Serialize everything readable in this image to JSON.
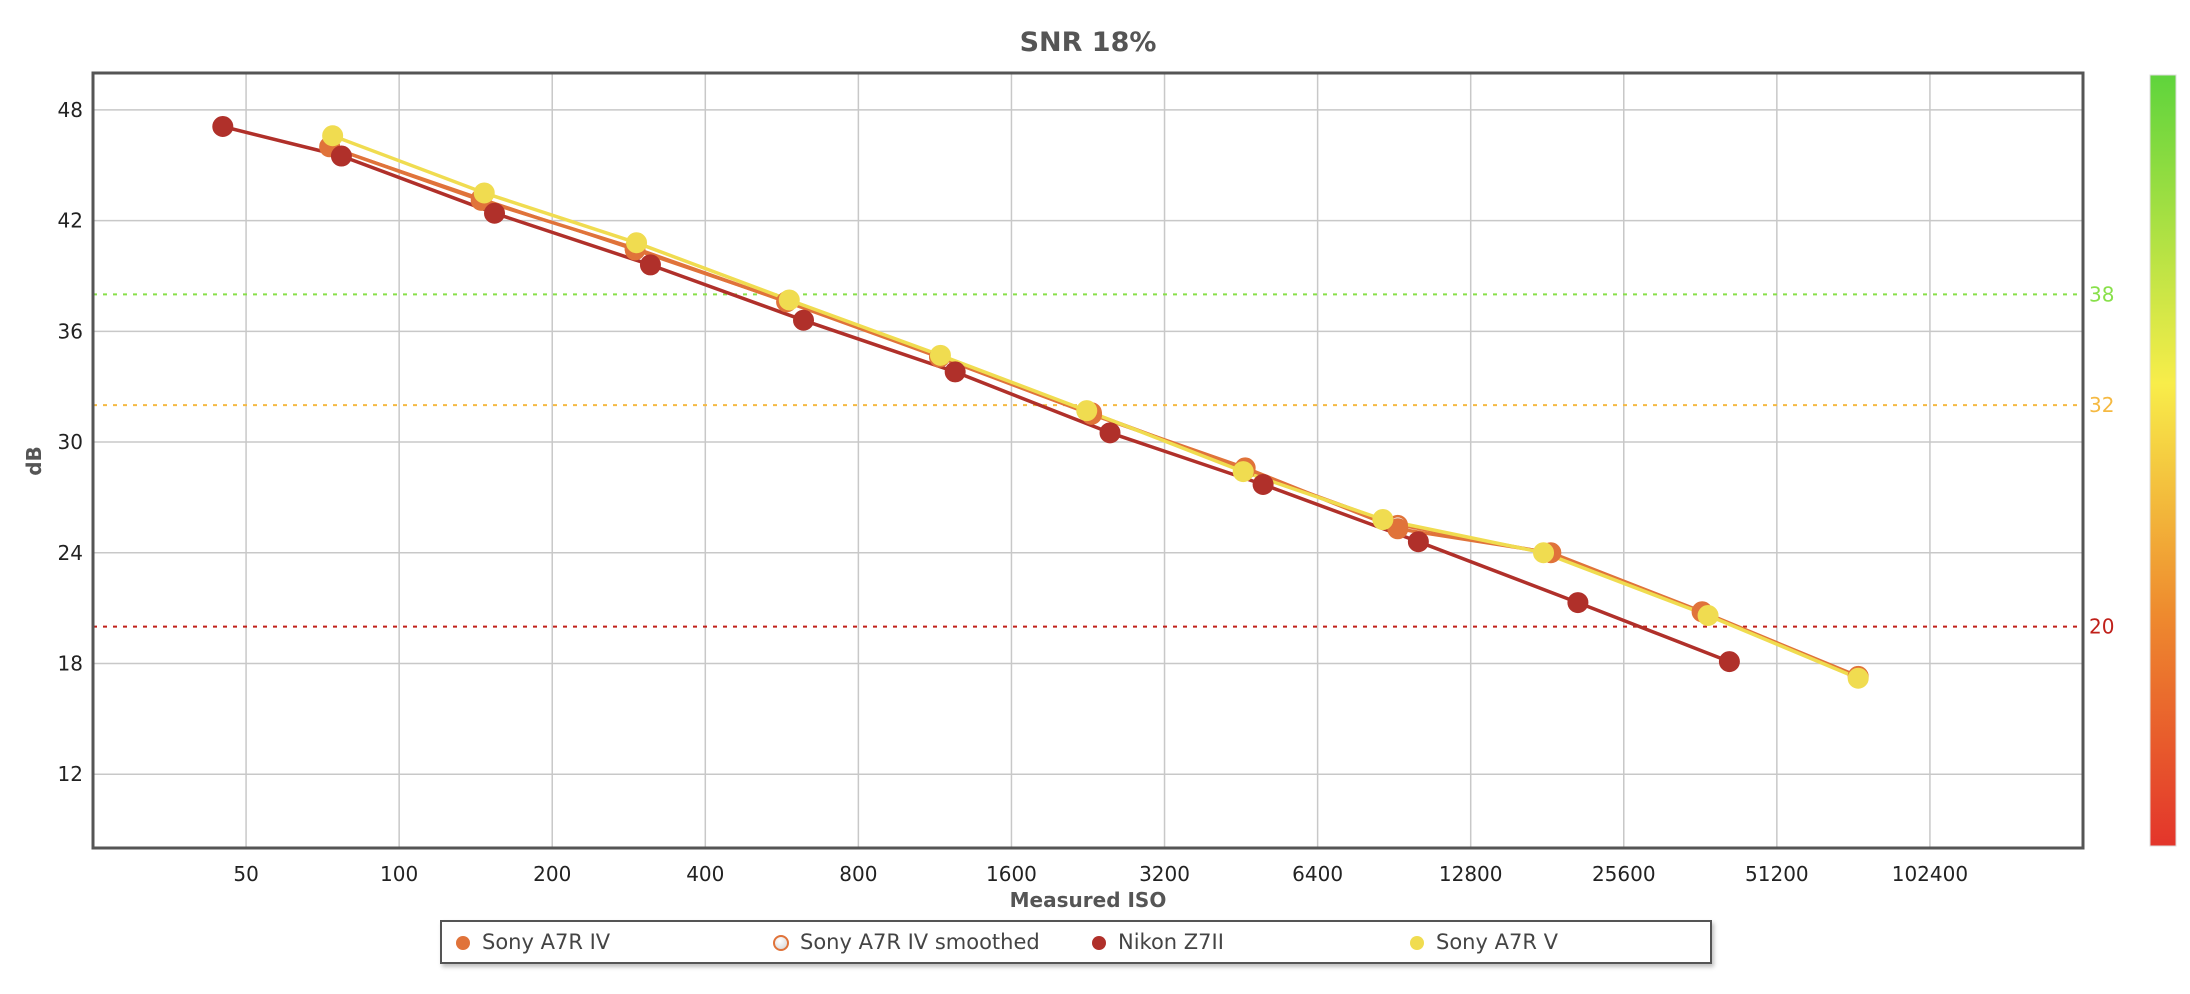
{
  "chart_data": {
    "type": "line",
    "title": "SNR 18%",
    "xlabel": "Measured ISO",
    "ylabel": "dB",
    "x_scale": "log2",
    "xlim": [
      25,
      204800
    ],
    "ylim": [
      8,
      50
    ],
    "x_ticks": [
      50,
      100,
      200,
      400,
      800,
      1600,
      3200,
      6400,
      12800,
      25600,
      51200,
      102400
    ],
    "x_tick_labels": [
      "50",
      "100",
      "200",
      "400",
      "800",
      "1600",
      "3200",
      "6400",
      "12800",
      "25600",
      "51200",
      "102400"
    ],
    "y_ticks": [
      12,
      18,
      24,
      30,
      36,
      42,
      48
    ],
    "y_tick_labels": [
      "12",
      "18",
      "24",
      "30",
      "36",
      "42",
      "48"
    ],
    "grid": true,
    "reference_lines": [
      {
        "y": 38,
        "label": "38",
        "color": "#88e04a"
      },
      {
        "y": 32,
        "label": "32",
        "color": "#f5b942"
      },
      {
        "y": 20,
        "label": "20",
        "color": "#c0201a"
      }
    ],
    "colorbar": {
      "colors": [
        "#5fd43c",
        "#f8ed4a",
        "#ee8a2e",
        "#e3352b"
      ],
      "position": "right"
    },
    "legend_position": "bottom",
    "series": [
      {
        "name": "Sony A7R IV",
        "color": "#e0733a",
        "marker": "filled",
        "points": [
          [
            73,
            46.0
          ],
          [
            145,
            43.1
          ],
          [
            291,
            40.5
          ],
          [
            578,
            37.6
          ],
          [
            1155,
            34.6
          ],
          [
            2300,
            31.5
          ],
          [
            4610,
            28.6
          ],
          [
            9200,
            25.3
          ],
          [
            18400,
            24.0
          ],
          [
            36500,
            20.8
          ],
          [
            74000,
            17.3
          ]
        ]
      },
      {
        "name": "Sony A7R IV smoothed",
        "color": "#e0733a",
        "marker": "hollow",
        "points": [
          [
            73,
            46.0
          ],
          [
            145,
            43.2
          ],
          [
            291,
            40.4
          ],
          [
            578,
            37.6
          ],
          [
            1155,
            34.6
          ],
          [
            2300,
            31.6
          ],
          [
            4610,
            28.5
          ],
          [
            9200,
            25.5
          ],
          [
            18400,
            24.0
          ],
          [
            36500,
            20.8
          ],
          [
            74000,
            17.3
          ]
        ]
      },
      {
        "name": "Nikon Z7II",
        "color": "#b0302a",
        "marker": "filled",
        "points": [
          [
            45,
            47.1
          ],
          [
            77,
            45.5
          ],
          [
            154,
            42.4
          ],
          [
            312,
            39.6
          ],
          [
            624,
            36.6
          ],
          [
            1240,
            33.8
          ],
          [
            2500,
            30.5
          ],
          [
            5000,
            27.7
          ],
          [
            10100,
            24.6
          ],
          [
            20800,
            21.3
          ],
          [
            41300,
            18.1
          ]
        ]
      },
      {
        "name": "Sony A7R V",
        "color": "#f0dc50",
        "marker": "filled",
        "points": [
          [
            74,
            46.6
          ],
          [
            147,
            43.5
          ],
          [
            293,
            40.8
          ],
          [
            585,
            37.7
          ],
          [
            1160,
            34.7
          ],
          [
            2250,
            31.7
          ],
          [
            4570,
            28.4
          ],
          [
            8600,
            25.8
          ],
          [
            17800,
            24.0
          ],
          [
            37500,
            20.6
          ],
          [
            74000,
            17.2
          ]
        ]
      }
    ]
  }
}
